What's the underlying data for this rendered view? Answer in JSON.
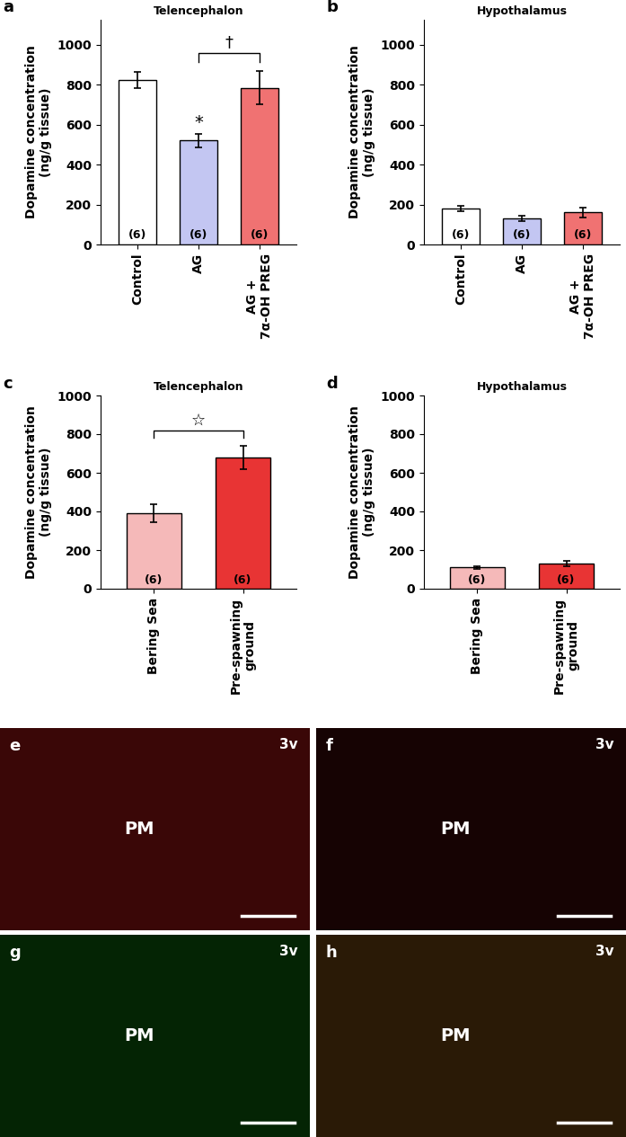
{
  "chart_data": [
    {
      "type": "bar",
      "panel": "a",
      "title": "Telencephalon",
      "ylabel": "Dopamine concentration\n(ng/g tissue)",
      "categories": [
        "Control",
        "AG",
        "AG +\n7α-OH PREG"
      ],
      "values": [
        825,
        520,
        785
      ],
      "errors": [
        40,
        35,
        85
      ],
      "colors": [
        "#ffffff",
        "#c3c6f2",
        "#f07272"
      ],
      "n_labels": [
        "(6)",
        "(6)",
        "(6)"
      ],
      "marks": [
        {
          "text": "*",
          "category": 1
        }
      ],
      "brackets": [
        {
          "text": "†",
          "from": 1,
          "to": 2
        }
      ],
      "ylim": [
        0,
        1125
      ],
      "yticks": [
        0,
        200,
        400,
        600,
        800,
        1000
      ]
    },
    {
      "type": "bar",
      "panel": "b",
      "title": "Hypothalamus",
      "ylabel": "Dopamine concentration\n(ng/g tissue)",
      "categories": [
        "Control",
        "AG",
        "AG +\n7α-OH PREG"
      ],
      "values": [
        180,
        130,
        160
      ],
      "errors": [
        15,
        15,
        25
      ],
      "colors": [
        "#ffffff",
        "#c3c6f2",
        "#f07272"
      ],
      "n_labels": [
        "(6)",
        "(6)",
        "(6)"
      ],
      "marks": [],
      "brackets": [],
      "ylim": [
        0,
        1125
      ],
      "yticks": [
        0,
        200,
        400,
        600,
        800,
        1000
      ]
    },
    {
      "type": "bar",
      "panel": "c",
      "title": "Telencephalon",
      "ylabel": "Dopamine concentration\n(ng/g tissue)",
      "categories": [
        "Bering Sea",
        "Pre-spawning\nground"
      ],
      "values": [
        390,
        680
      ],
      "errors": [
        45,
        60
      ],
      "colors": [
        "#f5b9b9",
        "#e83434"
      ],
      "n_labels": [
        "(6)",
        "(6)"
      ],
      "marks": [],
      "brackets": [
        {
          "text": "☆",
          "from": 0,
          "to": 1
        }
      ],
      "ylim": [
        0,
        1000
      ],
      "yticks": [
        0,
        200,
        400,
        600,
        800,
        1000
      ]
    },
    {
      "type": "bar",
      "panel": "d",
      "title": "Hypothalamus",
      "ylabel": "Dopamine concentration\n(ng/g tissue)",
      "categories": [
        "Bering Sea",
        "Pre-spawning\nground"
      ],
      "values": [
        110,
        130
      ],
      "errors": [
        8,
        12
      ],
      "colors": [
        "#f5b9b9",
        "#e83434"
      ],
      "n_labels": [
        "(6)",
        "(6)"
      ],
      "marks": [],
      "brackets": [],
      "ylim": [
        0,
        1000
      ],
      "yticks": [
        0,
        200,
        400,
        600,
        800,
        1000
      ]
    }
  ],
  "images": [
    {
      "panel": "e",
      "labels": [
        "3v",
        "PM"
      ],
      "color": "#3a0707"
    },
    {
      "panel": "f",
      "labels": [
        "3v",
        "PM"
      ],
      "color": "#160303"
    },
    {
      "panel": "g",
      "labels": [
        "3v",
        "PM"
      ],
      "color": "#042404"
    },
    {
      "panel": "h",
      "labels": [
        "3v",
        "PM"
      ],
      "color": "#2a1a06"
    }
  ]
}
